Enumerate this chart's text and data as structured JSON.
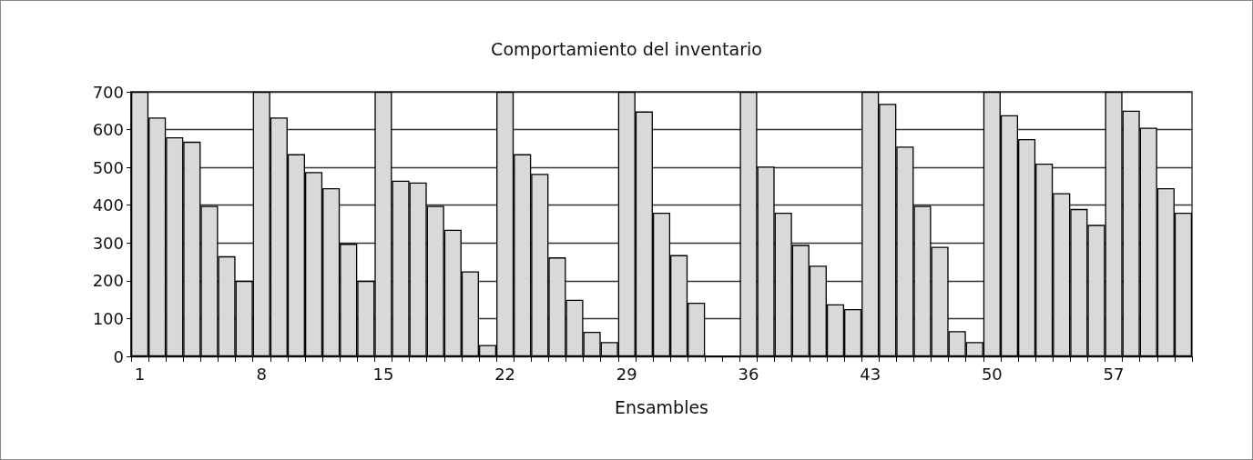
{
  "chart_data": {
    "type": "bar",
    "title": "Comportamiento del inventario",
    "xlabel": "Ensambles",
    "categories": [
      "1",
      null,
      null,
      null,
      null,
      null,
      null,
      "8",
      null,
      null,
      null,
      null,
      null,
      null,
      "15",
      null,
      null,
      null,
      null,
      null,
      null,
      "22",
      null,
      null,
      null,
      null,
      null,
      null,
      "29",
      null,
      null,
      null,
      null,
      null,
      null,
      "36",
      null,
      null,
      null,
      null,
      null,
      null,
      "43",
      null,
      null,
      null,
      null,
      null,
      null,
      "50",
      null,
      null,
      null,
      null,
      null,
      null,
      "57",
      null,
      null,
      null,
      null
    ],
    "values": [
      700,
      632,
      580,
      568,
      398,
      265,
      200,
      700,
      632,
      535,
      488,
      445,
      298,
      200,
      700,
      465,
      460,
      398,
      335,
      225,
      30,
      700,
      535,
      483,
      262,
      150,
      65,
      38,
      700,
      648,
      380,
      268,
      142,
      0,
      0,
      700,
      502,
      380,
      295,
      240,
      138,
      125,
      700,
      668,
      555,
      398,
      290,
      67,
      38,
      700,
      638,
      575,
      510,
      432,
      390,
      348,
      700,
      650,
      605,
      445,
      380
    ],
    "color": "#d9d9d9",
    "ylim": [
      0,
      700
    ],
    "yticks": [
      0,
      100,
      200,
      300,
      400,
      500,
      600,
      700
    ],
    "grid": "y"
  }
}
